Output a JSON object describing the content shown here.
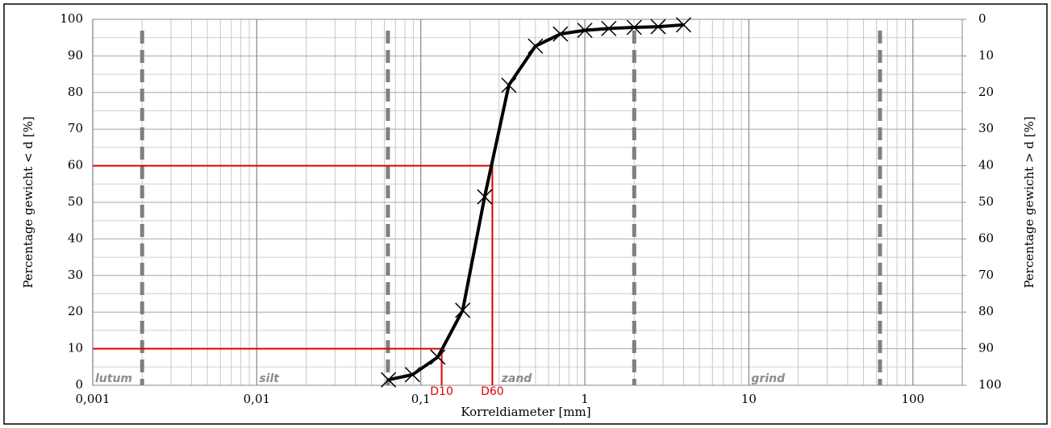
{
  "chart_data": {
    "type": "line",
    "x_label": "Korreldiameter [mm]",
    "y_label": "Percentage gewicht < d [%]",
    "y2_label": "Percentage gewicht > d [%]",
    "x_log": true,
    "grid": true,
    "xlim": [
      0.001,
      200
    ],
    "xticks": [
      {
        "value": 0.001,
        "label": "0,001"
      },
      {
        "value": 0.01,
        "label": "0,01"
      },
      {
        "value": 0.1,
        "label": "0,1"
      },
      1,
      10,
      100
    ],
    "ylim": [
      0,
      100
    ],
    "yticks": [
      0,
      10,
      20,
      30,
      40,
      50,
      60,
      70,
      80,
      90,
      100
    ],
    "y2lim": [
      100,
      0
    ],
    "y2ticks": [
      0,
      10,
      20,
      30,
      40,
      50,
      60,
      70,
      80,
      90,
      100
    ],
    "series": [
      {
        "color": "#000000",
        "marker": "x",
        "x": [
          0.0635,
          0.089,
          0.127,
          0.18,
          0.245,
          0.344,
          0.5,
          0.71,
          1.0,
          1.4,
          2.0,
          2.8,
          4.0
        ],
        "values": [
          1.5,
          2.9,
          7.7,
          20.5,
          51.5,
          82,
          92.7,
          96,
          97,
          97.5,
          97.8,
          98,
          98.5
        ]
      }
    ],
    "boundaries": [
      0.002,
      0.063,
      2,
      63
    ],
    "reference_lines": [
      {
        "label": "D10",
        "x": 0.134,
        "y": 10,
        "color": "#e00000"
      },
      {
        "label": "D60",
        "x": 0.273,
        "y": 60,
        "color": "#e00000"
      }
    ],
    "annotations": [
      {
        "text": "lutum",
        "x": 0.001
      },
      {
        "text": "silt",
        "x": 0.01
      },
      {
        "text": "zand",
        "x": 0.3
      },
      {
        "text": "grind",
        "x": 10
      }
    ]
  }
}
